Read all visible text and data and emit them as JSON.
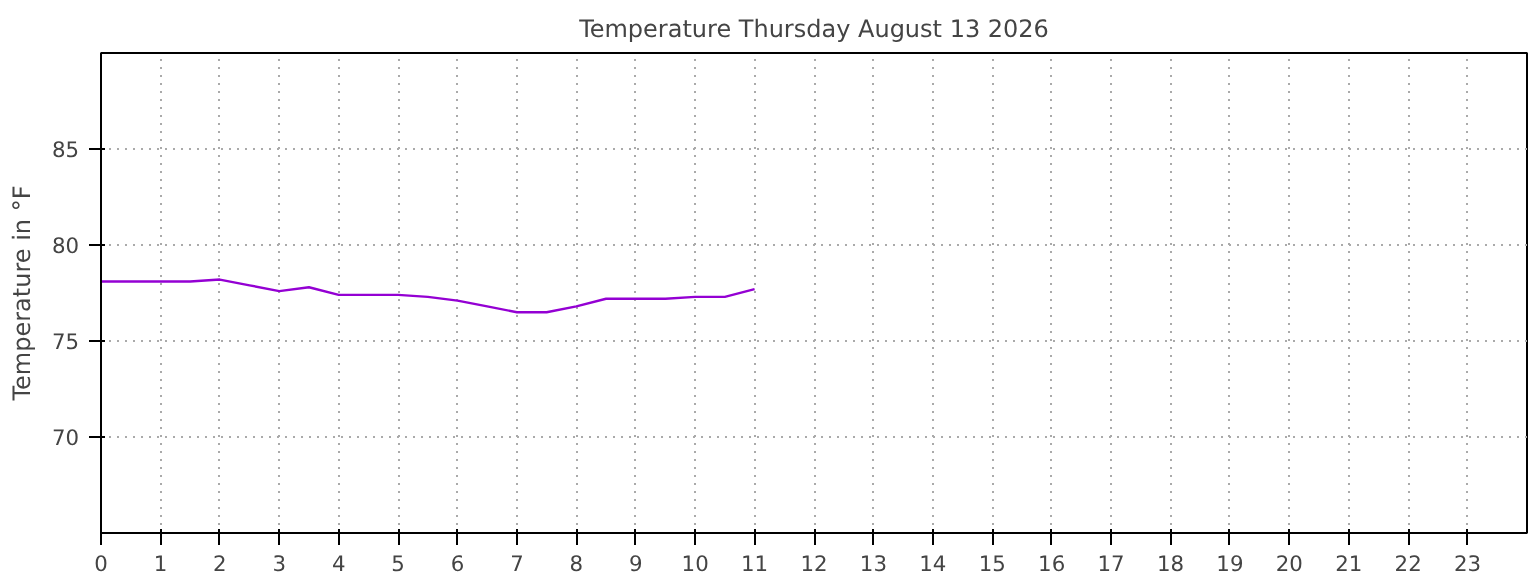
{
  "chart_data": {
    "type": "line",
    "title": "Temperature Thursday August 13 2026",
    "ylabel": "Temperature in °F",
    "x": [
      0,
      0.5,
      1,
      1.5,
      2,
      2.5,
      3,
      3.5,
      4,
      4.5,
      5,
      5.5,
      6,
      6.5,
      7,
      7.5,
      8,
      8.5,
      9,
      9.5,
      10,
      10.5,
      11
    ],
    "series": [
      {
        "color": "#9400d3",
        "values": [
          78.1,
          78.1,
          78.1,
          78.1,
          78.2,
          77.9,
          77.6,
          77.8,
          77.4,
          77.4,
          77.4,
          77.3,
          77.1,
          76.8,
          76.5,
          76.5,
          76.8,
          77.2,
          77.2,
          77.2,
          77.3,
          77.3,
          77.7
        ]
      }
    ],
    "xlim": [
      0,
      24
    ],
    "xticks": [
      0,
      1,
      2,
      3,
      4,
      5,
      6,
      7,
      8,
      9,
      10,
      11,
      12,
      13,
      14,
      15,
      16,
      17,
      18,
      19,
      20,
      21,
      22,
      23
    ],
    "ylim": [
      65,
      90
    ],
    "yticks": [
      70,
      75,
      80,
      85
    ],
    "grid": true
  }
}
